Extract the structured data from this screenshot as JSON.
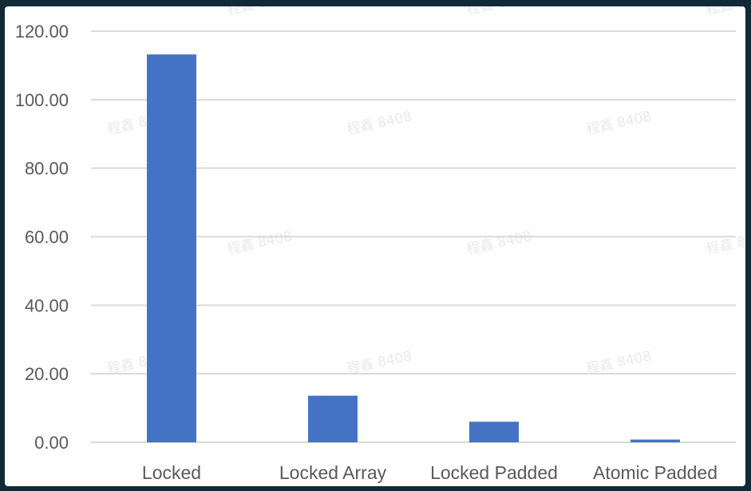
{
  "chart_data": {
    "type": "bar",
    "categories": [
      "Locked",
      "Locked Array",
      "Locked Padded",
      "Atomic Padded"
    ],
    "values": [
      113.2,
      13.6,
      6.0,
      0.8
    ],
    "ylim": [
      0,
      120
    ],
    "yticks": [
      "0.00",
      "20.00",
      "40.00",
      "60.00",
      "80.00",
      "100.00",
      "120.00"
    ],
    "grid": true,
    "legend": "none",
    "title": "",
    "xlabel": "",
    "ylabel": ""
  },
  "colors": {
    "bar": "#4472c4",
    "grid": "#d9d9d9",
    "text": "#595959",
    "frame": "#102b36"
  },
  "watermark": "程鑫 8408"
}
